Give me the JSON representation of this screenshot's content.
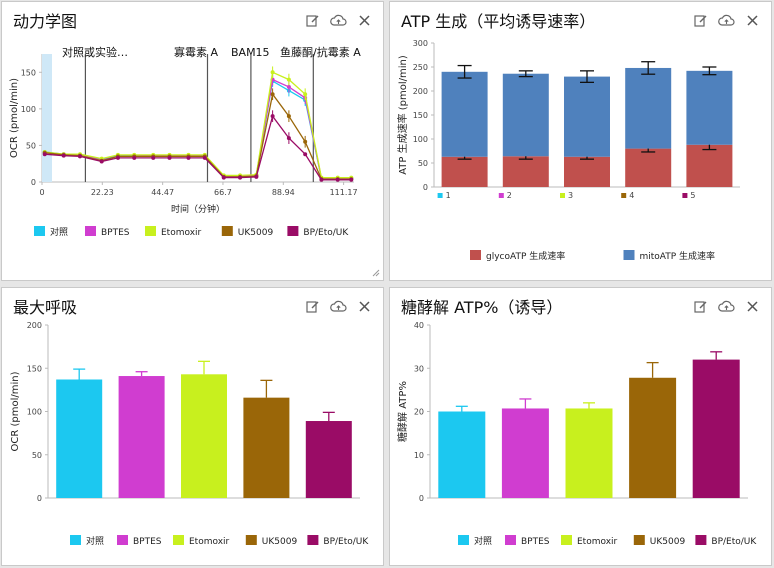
{
  "panels": {
    "kinetics": {
      "title": "动力学图"
    },
    "atp": {
      "title": "ATP 生成（平均诱导速率）"
    },
    "maxresp": {
      "title": "最大呼吸"
    },
    "glyco": {
      "title": "糖酵解 ATP%（诱导）"
    }
  },
  "icons": [
    "edit-icon",
    "cloud-upload-icon",
    "close-icon"
  ],
  "groups": [
    {
      "name": "对照",
      "color": "#1cc8f0"
    },
    {
      "name": "BPTES",
      "color": "#d03dd0"
    },
    {
      "name": "Etomoxir",
      "color": "#c8f01e"
    },
    {
      "name": "UK5009",
      "color": "#9a6608"
    },
    {
      "name": "BP/Eto/UK",
      "color": "#9a0c66"
    }
  ],
  "chart_data": [
    {
      "id": "kinetics",
      "type": "line",
      "ylabel": "OCR (pmol/min)",
      "xlabel": "时间（分钟）",
      "xlim": [
        0,
        115
      ],
      "ylim": [
        0,
        175
      ],
      "xticks": [
        0,
        22.23,
        44.47,
        66.7,
        88.94,
        111.17
      ],
      "xtick_labels": [
        "0",
        "22.23",
        "44.47",
        "66.7",
        "88.94",
        "111.17"
      ],
      "yticks": [
        0,
        50,
        100,
        150
      ],
      "injections": [
        {
          "x": 16,
          "label": "对照或实验…"
        },
        {
          "x": 61,
          "label": "寡霉素 A"
        },
        {
          "x": 77,
          "label": "BAM15"
        },
        {
          "x": 100,
          "label": "鱼藤酮/抗霉素 A"
        }
      ],
      "x": [
        1,
        8,
        14,
        22,
        28,
        34,
        41,
        47,
        54,
        60,
        67,
        73,
        79,
        85,
        91,
        97,
        103,
        109,
        114
      ],
      "series": [
        {
          "name": "对照",
          "values": [
            41,
            38,
            37,
            31,
            36,
            36,
            36,
            36,
            36,
            36,
            8,
            8,
            9,
            138,
            125,
            112,
            5,
            5,
            5
          ]
        },
        {
          "name": "BPTES",
          "values": [
            40,
            38,
            37,
            30,
            35,
            35,
            36,
            35,
            36,
            36,
            8,
            8,
            9,
            140,
            130,
            115,
            5,
            5,
            5
          ]
        },
        {
          "name": "Etomoxir",
          "values": [
            41,
            38,
            38,
            32,
            37,
            37,
            37,
            37,
            37,
            37,
            9,
            9,
            10,
            150,
            140,
            120,
            6,
            6,
            6
          ]
        },
        {
          "name": "UK5009",
          "values": [
            40,
            37,
            36,
            29,
            35,
            35,
            35,
            35,
            35,
            35,
            7,
            7,
            8,
            120,
            90,
            55,
            4,
            4,
            4
          ]
        },
        {
          "name": "BP/Eto/UK",
          "values": [
            38,
            36,
            35,
            28,
            33,
            33,
            33,
            33,
            33,
            33,
            6,
            6,
            7,
            90,
            60,
            38,
            3,
            3,
            3
          ]
        }
      ]
    },
    {
      "id": "atp",
      "type": "bar",
      "stacked": true,
      "ylabel": "ATP 生成速率 (pmol/min)",
      "categories": [
        "1",
        "2",
        "3",
        "4",
        "5"
      ],
      "ylim": [
        0,
        300
      ],
      "yticks": [
        0,
        50,
        100,
        150,
        200,
        250,
        300
      ],
      "series": [
        {
          "name": "glycoATP 生成速率",
          "color": "#c0504d",
          "values": [
            63,
            64,
            63,
            80,
            88
          ],
          "err": [
            5,
            6,
            5,
            7,
            10
          ]
        },
        {
          "name": "mitoATP 生成速率",
          "color": "#4f81bd",
          "values": [
            177,
            172,
            167,
            168,
            154
          ],
          "err": [
            13,
            6,
            12,
            13,
            8
          ]
        }
      ]
    },
    {
      "id": "maxresp",
      "type": "bar",
      "ylabel": "OCR (pmol/min)",
      "categories": [
        "对照",
        "BPTES",
        "Etomoxir",
        "UK5009",
        "BP/Eto/UK"
      ],
      "values": [
        137,
        141,
        143,
        116,
        89
      ],
      "err": [
        12,
        5,
        15,
        20,
        10
      ],
      "ylim": [
        0,
        200
      ],
      "yticks": [
        0,
        50,
        100,
        150,
        200
      ]
    },
    {
      "id": "glyco",
      "type": "bar",
      "ylabel": "糖酵解 ATP%",
      "categories": [
        "对照",
        "BPTES",
        "Etomoxir",
        "UK5009",
        "BP/Eto/UK"
      ],
      "values": [
        20,
        20.7,
        20.7,
        27.8,
        32
      ],
      "err": [
        1.2,
        2.2,
        1.3,
        3.5,
        1.8
      ],
      "ylim": [
        0,
        40
      ],
      "yticks": [
        0,
        10,
        20,
        30,
        40
      ]
    }
  ]
}
